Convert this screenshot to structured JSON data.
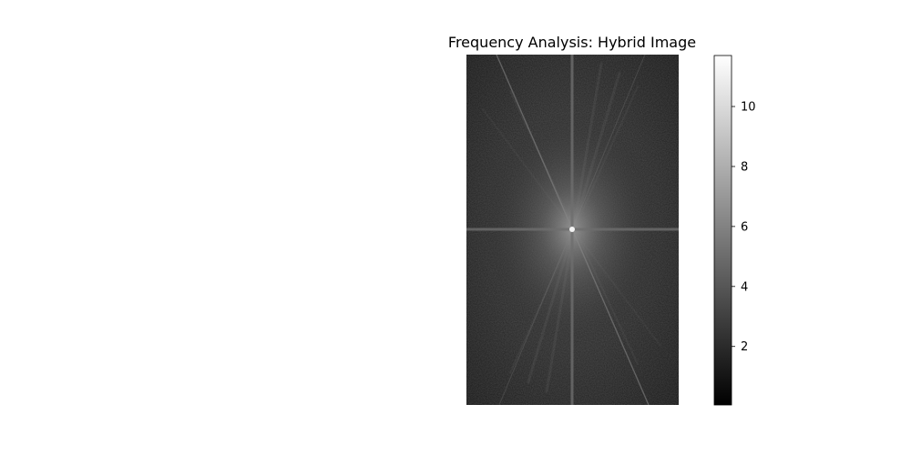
{
  "chart_data": {
    "type": "heatmap",
    "title": "Frequency Analysis: Hybrid Image",
    "colormap": "gray",
    "axes_visible": false,
    "colorbar": {
      "range": [
        0.05,
        11.7
      ],
      "ticks": [
        2,
        4,
        6,
        8,
        10
      ],
      "tick_labels": [
        "2",
        "4",
        "6",
        "8",
        "10"
      ]
    }
  }
}
